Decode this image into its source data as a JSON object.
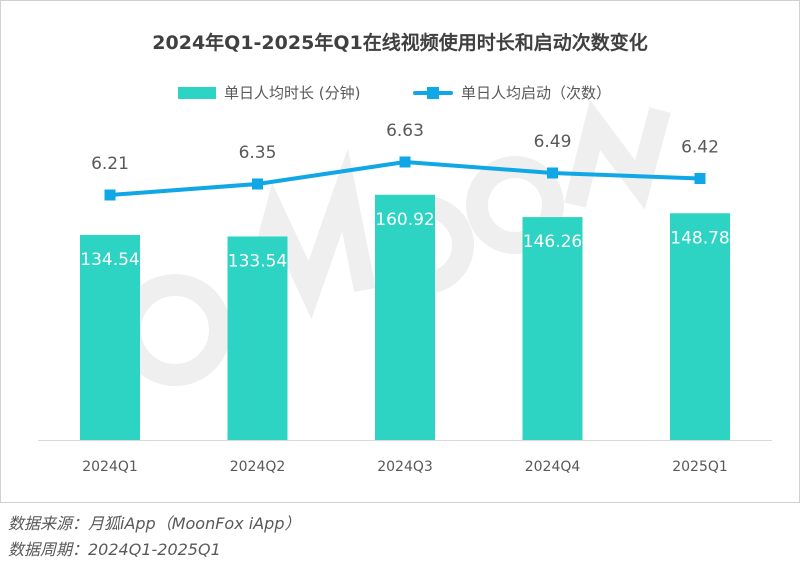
{
  "chart_data": {
    "type": "bar+line",
    "title": "2024年Q1-2025年Q1在线视频使用时长和启动次数变化",
    "categories": [
      "2024Q1",
      "2024Q2",
      "2024Q3",
      "2024Q4",
      "2025Q1"
    ],
    "series": [
      {
        "name": "单日人均时长 (分钟)",
        "type": "bar",
        "values": [
          134.54,
          133.54,
          160.92,
          146.26,
          148.78
        ],
        "color": "#2dd4c3"
      },
      {
        "name": "单日人均启动（次数）",
        "type": "line",
        "values": [
          6.21,
          6.35,
          6.63,
          6.49,
          6.42
        ],
        "color": "#10a7e6"
      }
    ],
    "legend_position": "top",
    "grid": false
  },
  "watermark": "MoonFox",
  "footer": {
    "source": "数据来源：月狐iApp（MoonFox iApp）",
    "period": "数据周期：2024Q1-2025Q1"
  }
}
